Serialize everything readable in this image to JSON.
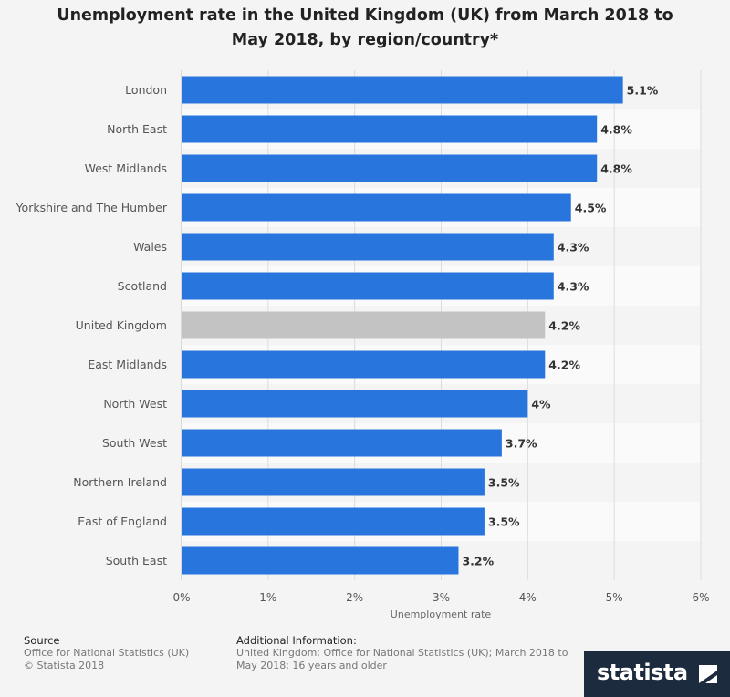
{
  "chart_data": {
    "type": "bar",
    "orientation": "horizontal",
    "title": "Unemployment rate in the United Kingdom (UK) from March 2018 to May 2018, by region/country*",
    "xlabel": "Unemployment rate",
    "ylabel": "",
    "xlim": [
      0,
      6
    ],
    "x_ticks": [
      "0%",
      "1%",
      "2%",
      "3%",
      "4%",
      "5%",
      "6%"
    ],
    "grid": true,
    "categories": [
      "London",
      "North East",
      "West Midlands",
      "Yorkshire and The Humber",
      "Wales",
      "Scotland",
      "United Kingdom",
      "East Midlands",
      "North West",
      "South West",
      "Northern Ireland",
      "East of England",
      "South East"
    ],
    "values": [
      5.1,
      4.8,
      4.8,
      4.5,
      4.3,
      4.3,
      4.2,
      4.2,
      4.0,
      3.7,
      3.5,
      3.5,
      3.2
    ],
    "value_labels": [
      "5.1%",
      "4.8%",
      "4.8%",
      "4.5%",
      "4.3%",
      "4.3%",
      "4.2%",
      "4.2%",
      "4%",
      "3.7%",
      "3.5%",
      "3.5%",
      "3.2%"
    ],
    "colors": {
      "bar": "#2775dd",
      "highlight": "#c3c3c3",
      "highlight_category": "United Kingdom"
    }
  },
  "footer": {
    "source_heading": "Source",
    "source_lines": [
      "Office for National Statistics (UK)",
      "© Statista 2018"
    ],
    "info_heading": "Additional Information:",
    "info_lines": [
      "United Kingdom; Office for National Statistics (UK); March 2018 to",
      "May 2018; 16 years and older"
    ]
  },
  "brand": {
    "name": "statista"
  }
}
